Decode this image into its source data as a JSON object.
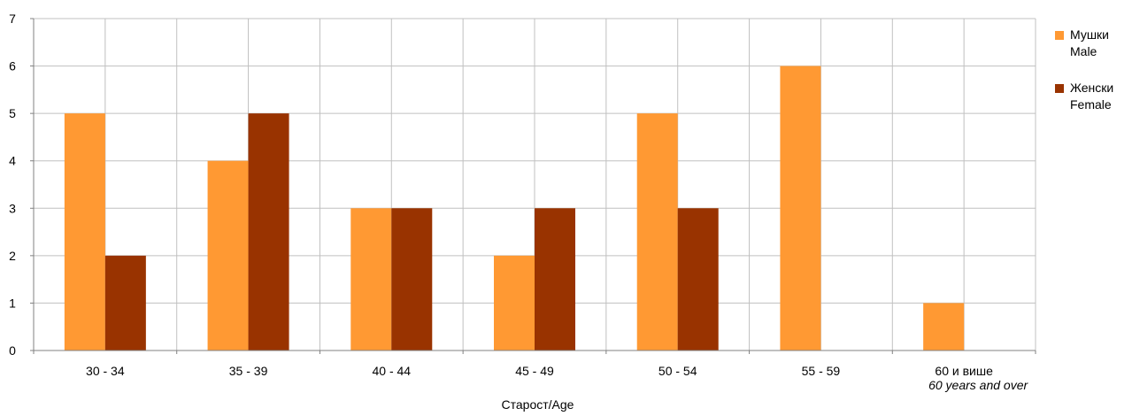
{
  "chart_data": {
    "type": "bar",
    "categories": [
      {
        "line1": "30 - 34",
        "line2": ""
      },
      {
        "line1": "35 - 39",
        "line2": ""
      },
      {
        "line1": "40 - 44",
        "line2": ""
      },
      {
        "line1": "45 - 49",
        "line2": ""
      },
      {
        "line1": "50 - 54",
        "line2": ""
      },
      {
        "line1": "55 - 59",
        "line2": ""
      },
      {
        "line1": "60 и више",
        "line2": "60 years and over"
      }
    ],
    "series": [
      {
        "name_line1": "Мушки",
        "name_line2": "Male",
        "color": "#FF9933",
        "values": [
          5,
          4,
          3,
          2,
          5,
          6,
          1
        ]
      },
      {
        "name_line1": "Женски",
        "name_line2": "Female",
        "color": "#993300",
        "values": [
          2,
          5,
          3,
          3,
          3,
          0,
          0
        ]
      }
    ],
    "ylim": [
      0,
      7
    ],
    "yticks": [
      0,
      1,
      2,
      3,
      4,
      5,
      6,
      7
    ],
    "xlabel": "Старост/Age",
    "grid": true,
    "legend_position": "right"
  }
}
